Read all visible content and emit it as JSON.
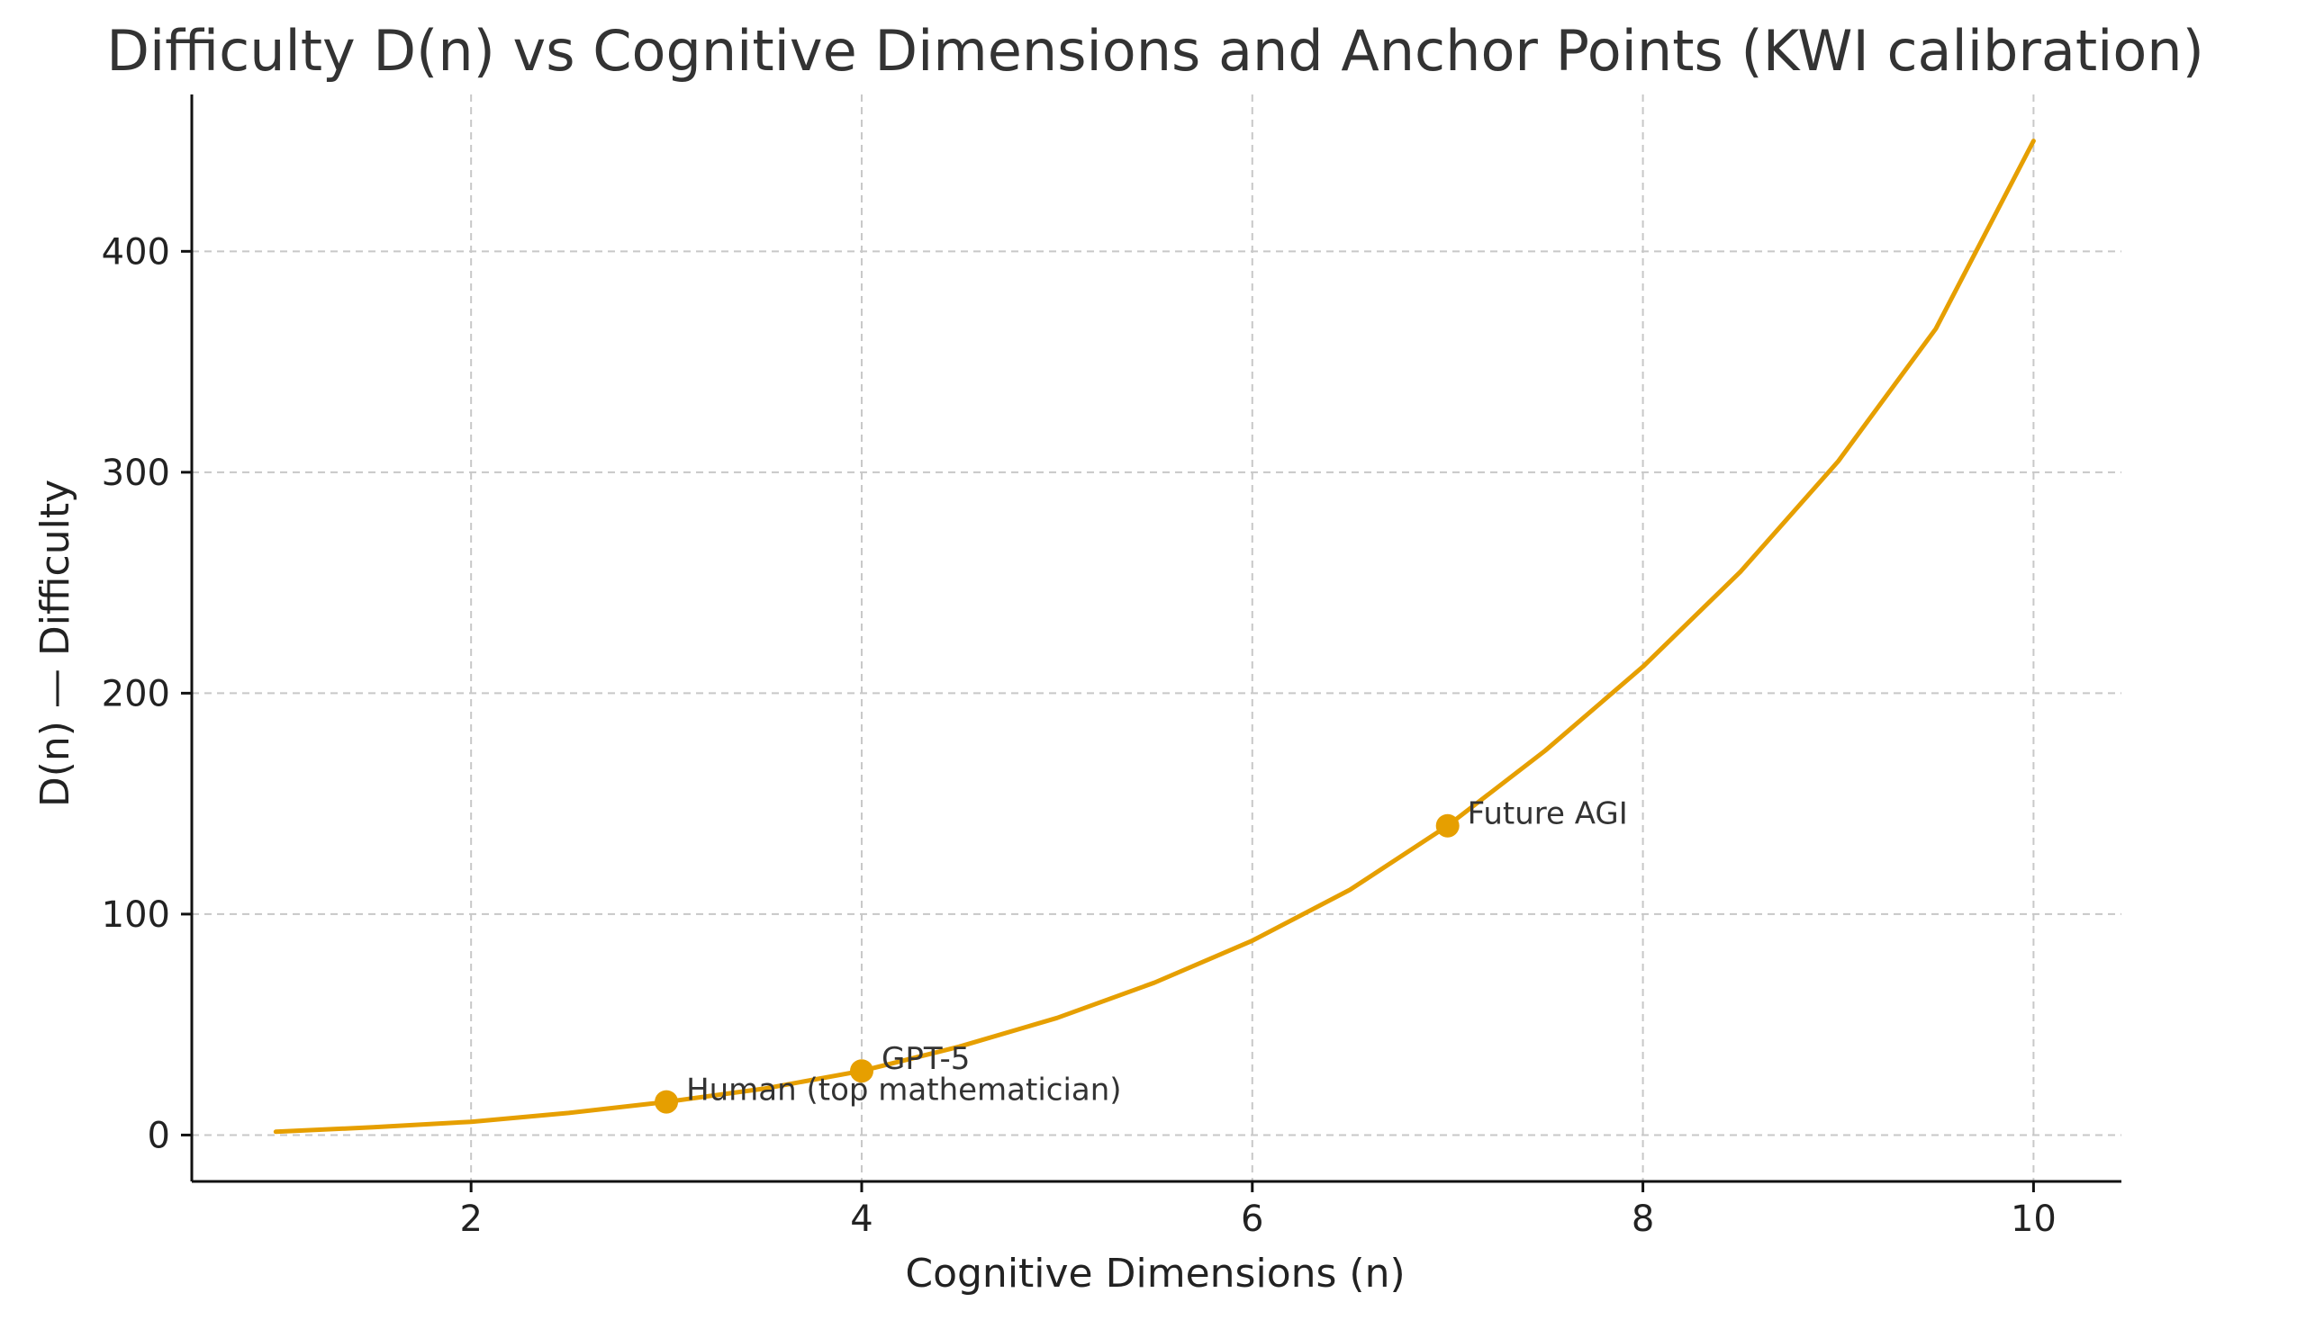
{
  "chart_data": {
    "type": "line",
    "title": "Difficulty D(n) vs Cognitive Dimensions and Anchor Points (KWI calibration)",
    "xlabel": "Cognitive Dimensions (n)",
    "ylabel": "D(n) — Difficulty",
    "xlim": [
      0.57,
      10.45
    ],
    "ylim": [
      -21,
      471
    ],
    "x_ticks": [
      2,
      4,
      6,
      8,
      10
    ],
    "y_ticks": [
      0,
      100,
      200,
      300,
      400
    ],
    "grid": true,
    "color": "#E69F00",
    "series": [
      {
        "x": [
          1,
          1.5,
          2,
          2.5,
          3,
          3.5,
          4,
          4.5,
          5,
          5.5,
          6,
          6.5,
          7,
          7.5,
          8,
          8.5,
          9,
          9.5,
          10
        ],
        "values": [
          1.5,
          3.5,
          6,
          10,
          15,
          21,
          29,
          40,
          53,
          69,
          88,
          111,
          140,
          174,
          212,
          255,
          305,
          365,
          450
        ]
      }
    ],
    "anchors": [
      {
        "label": "Human (top mathematician)",
        "x": 3,
        "y": 15
      },
      {
        "label": "GPT-5",
        "x": 4,
        "y": 29
      },
      {
        "label": "Future AGI",
        "x": 7,
        "y": 140
      }
    ]
  }
}
